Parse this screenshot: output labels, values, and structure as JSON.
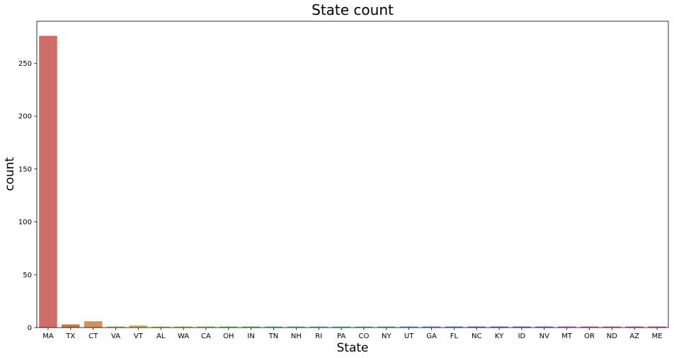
{
  "chart_data": {
    "type": "bar",
    "title": "State count",
    "xlabel": "State",
    "ylabel": "count",
    "categories": [
      "MA",
      "TX",
      "CT",
      "VA",
      "VT",
      "AL",
      "WA",
      "CA",
      "OH",
      "IN",
      "TN",
      "NH",
      "RI",
      "PA",
      "CO",
      "NY",
      "UT",
      "GA",
      "FL",
      "NC",
      "KY",
      "ID",
      "NV",
      "MT",
      "OR",
      "ND",
      "AZ",
      "ME"
    ],
    "values": [
      276,
      3,
      6,
      1,
      2,
      1,
      1,
      1,
      1,
      1,
      1,
      1,
      1,
      1,
      1,
      1,
      1,
      1,
      1,
      1,
      1,
      1,
      1,
      1,
      1,
      1,
      1,
      1
    ],
    "colors": [
      "#cf6d67",
      "#c9774e",
      "#d19258",
      "#cfa95a",
      "#c7b95a",
      "#b6c25b",
      "#a0c55c",
      "#8ac65e",
      "#72c562",
      "#5fc46d",
      "#58c47f",
      "#55c493",
      "#55c4a8",
      "#55c2bb",
      "#55bcc8",
      "#56afcc",
      "#589fcc",
      "#5b8ecc",
      "#5f7dcb",
      "#666dc8",
      "#7564c6",
      "#8661c4",
      "#9760c2",
      "#a960c0",
      "#bb60bb",
      "#c660ad",
      "#c7609a",
      "#c95f86"
    ],
    "ylim": [
      0,
      289.8
    ],
    "yticks": [
      0,
      50,
      100,
      150,
      200,
      250
    ],
    "grid": false,
    "legend": "none"
  }
}
